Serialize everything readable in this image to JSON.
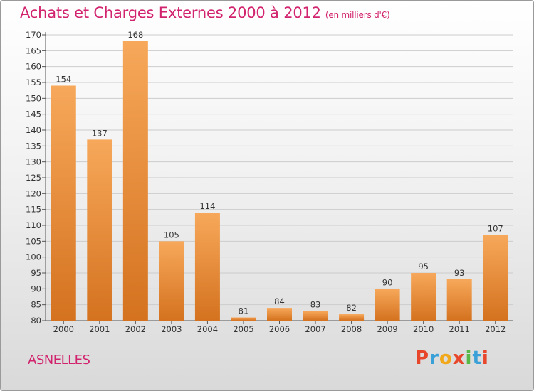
{
  "colors": {
    "title": "#d2246e",
    "bar_light": "#f7a85a",
    "bar_dark": "#d4721f",
    "grid": "#cccccc",
    "text": "#333333"
  },
  "header": {
    "title": "Achats et Charges Externes 2000 à 2012",
    "subtitle": "(en milliers d'€)"
  },
  "footer": {
    "place": "ASNELLES",
    "logo": [
      "P",
      "r",
      "o",
      "x",
      "i",
      "t",
      "i"
    ],
    "logo_colors": [
      "#e8462b",
      "#3aa0d8",
      "#f2a81b",
      "#e8462b",
      "#58b947",
      "#3aa0d8",
      "#e8462b"
    ]
  },
  "chart_data": {
    "type": "bar",
    "categories": [
      "2000",
      "2001",
      "2002",
      "2003",
      "2004",
      "2005",
      "2006",
      "2007",
      "2008",
      "2009",
      "2010",
      "2011",
      "2012"
    ],
    "values": [
      154,
      137,
      168,
      105,
      114,
      81,
      84,
      83,
      82,
      90,
      95,
      93,
      107
    ],
    "ylim": [
      80,
      170
    ],
    "yticks": [
      80,
      85,
      90,
      95,
      100,
      105,
      110,
      115,
      120,
      125,
      130,
      135,
      140,
      145,
      150,
      155,
      160,
      165,
      170
    ],
    "grid": true,
    "data_labels": true
  }
}
